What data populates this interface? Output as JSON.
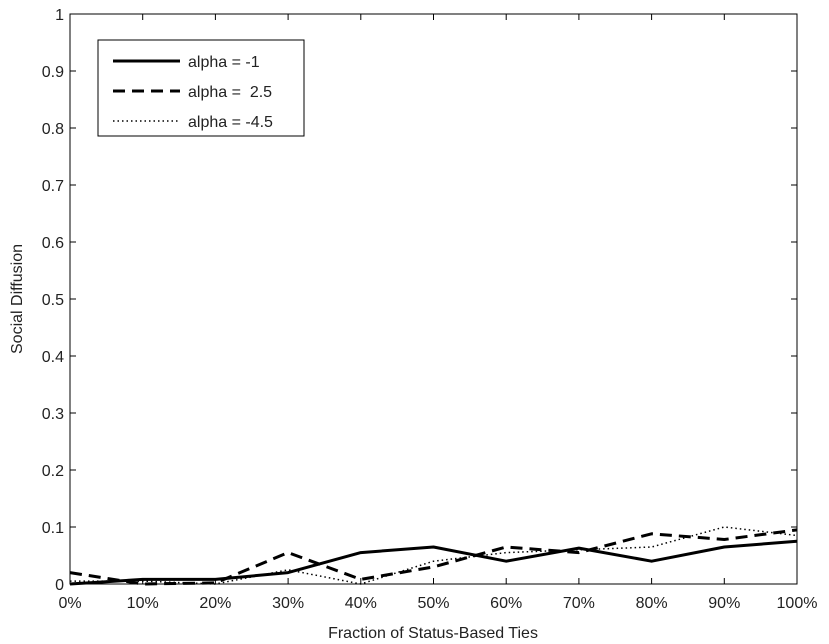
{
  "chart_data": {
    "type": "line",
    "title": "",
    "xlabel": "Fraction of Status-Based Ties",
    "ylabel": "Social Diffusion",
    "x": [
      0,
      10,
      20,
      30,
      40,
      50,
      60,
      70,
      80,
      90,
      100
    ],
    "x_tick_labels": [
      "0%",
      "10%",
      "20%",
      "30%",
      "40%",
      "50%",
      "60%",
      "70%",
      "80%",
      "90%",
      "100%"
    ],
    "y_tick_labels": [
      "0",
      "0.1",
      "0.2",
      "0.3",
      "0.4",
      "0.5",
      "0.6",
      "0.7",
      "0.8",
      "0.9",
      "1"
    ],
    "xlim": [
      0,
      100
    ],
    "ylim": [
      0,
      1
    ],
    "grid": false,
    "legend_position": "top-left",
    "series": [
      {
        "name": "alpha = -1",
        "style": "solid",
        "color": "#000000",
        "values": [
          0.0,
          0.008,
          0.008,
          0.02,
          0.055,
          0.065,
          0.04,
          0.063,
          0.04,
          0.065,
          0.075
        ]
      },
      {
        "name": "alpha =  2.5",
        "style": "dashed",
        "color": "#000000",
        "values": [
          0.02,
          0.0,
          0.002,
          0.055,
          0.008,
          0.03,
          0.065,
          0.055,
          0.088,
          0.078,
          0.095
        ]
      },
      {
        "name": "alpha = -4.5",
        "style": "dotted",
        "color": "#000000",
        "values": [
          0.005,
          0.005,
          0.0,
          0.025,
          0.0,
          0.04,
          0.055,
          0.06,
          0.065,
          0.1,
          0.085
        ]
      }
    ]
  }
}
